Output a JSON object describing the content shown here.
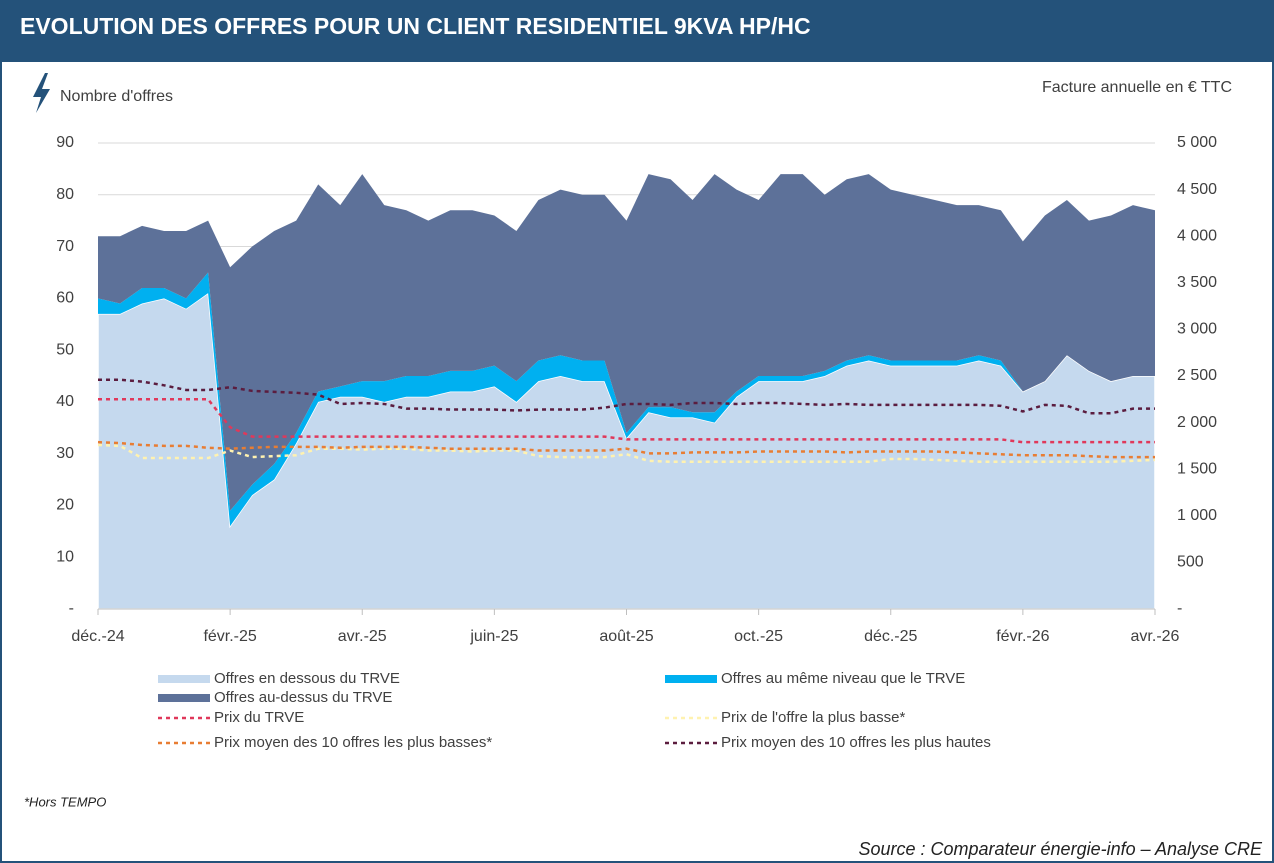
{
  "chart_data": {
    "type": "area",
    "stacked": true,
    "title": "EVOLUTION DES OFFRES POUR UN CLIENT RESIDENTIEL 9KVA HP/HC",
    "y_label": "Nombre d'offres",
    "y2_label": "Facture annuelle en € TTC",
    "footnote": "*Hors TEMPO",
    "source": "Source : Comparateur énergie-info – Analyse CRE",
    "categories": [
      "déc.-24",
      null,
      null,
      null,
      null,
      null,
      "févr.-25",
      null,
      null,
      null,
      null,
      null,
      "avr.-25",
      null,
      null,
      null,
      null,
      null,
      "juin-25",
      null,
      null,
      null,
      null,
      null,
      "août-25",
      null,
      null,
      null,
      null,
      null,
      "oct.-25",
      null,
      null,
      null,
      null,
      null,
      "déc.-25",
      null,
      null,
      null,
      null,
      null,
      "févr.-26",
      null,
      null,
      null,
      null,
      null,
      "avr.-26"
    ],
    "ylim": [
      0,
      90
    ],
    "yticks": [
      {
        "value": 0,
        "label": "-"
      },
      10,
      20,
      30,
      40,
      50,
      60,
      70,
      80,
      90
    ],
    "y2lim": [
      0,
      5000
    ],
    "y2ticks": [
      {
        "value": 0,
        "label": "-"
      },
      500,
      {
        "value": 1000,
        "label": "1 000"
      },
      {
        "value": 1500,
        "label": "1 500"
      },
      {
        "value": 2000,
        "label": "2 000"
      },
      {
        "value": 2500,
        "label": "2 500"
      },
      {
        "value": 3000,
        "label": "3 000"
      },
      {
        "value": 3500,
        "label": "3 500"
      },
      {
        "value": 4000,
        "label": "4 000"
      },
      {
        "value": 4500,
        "label": "4 500"
      },
      {
        "value": 5000,
        "label": "5 000"
      }
    ],
    "grid": true,
    "series": [
      {
        "name": "Offres en dessous du TRVE",
        "color": "#c5d9ee",
        "values": [
          57,
          57,
          59,
          60,
          58,
          61,
          16,
          22,
          25,
          32,
          40,
          41,
          41,
          40,
          41,
          41,
          42,
          42,
          43,
          40,
          44,
          45,
          44,
          44,
          33,
          38,
          37,
          37,
          36,
          41,
          44,
          44,
          44,
          45,
          47,
          48,
          47,
          47,
          47,
          47,
          48,
          47,
          42,
          44,
          49,
          46,
          44,
          45,
          45
        ]
      },
      {
        "name": "Offres au même niveau que le TRVE",
        "color": "#00b0f0",
        "values": [
          3,
          2,
          3,
          2,
          2,
          4,
          3,
          2,
          3,
          2,
          2,
          2,
          3,
          4,
          4,
          4,
          4,
          4,
          4,
          4,
          4,
          4,
          4,
          4,
          1,
          1,
          2,
          1,
          2,
          1,
          1,
          1,
          1,
          1,
          1,
          1,
          1,
          1,
          1,
          1,
          1,
          1,
          0,
          0,
          0,
          0,
          0,
          0,
          0
        ]
      },
      {
        "name": "Offres au-dessus du TRVE",
        "color": "#5d7199",
        "values": [
          12,
          13,
          12,
          11,
          13,
          10,
          47,
          46,
          45,
          41,
          40,
          35,
          40,
          34,
          32,
          30,
          31,
          31,
          29,
          29,
          31,
          32,
          32,
          32,
          41,
          45,
          44,
          41,
          46,
          39,
          34,
          39,
          39,
          34,
          35,
          35,
          33,
          32,
          31,
          30,
          29,
          29,
          29,
          32,
          30,
          29,
          32,
          33,
          32
        ]
      },
      {
        "name": "Prix du TRVE",
        "color": "#e0385a",
        "axis": "y2",
        "line_style": "dashed",
        "values": [
          2250,
          2250,
          2250,
          2250,
          2250,
          2250,
          1950,
          1850,
          1850,
          1850,
          1850,
          1850,
          1850,
          1850,
          1850,
          1850,
          1850,
          1850,
          1850,
          1850,
          1850,
          1850,
          1850,
          1850,
          1820,
          1820,
          1820,
          1820,
          1820,
          1820,
          1820,
          1820,
          1820,
          1820,
          1820,
          1820,
          1820,
          1820,
          1820,
          1820,
          1820,
          1820,
          1790,
          1790,
          1790,
          1790,
          1790,
          1790,
          1790
        ]
      },
      {
        "name": "Prix de l'offre la plus basse*",
        "color": "#fff2b0",
        "axis": "y2",
        "line_style": "dashed",
        "values": [
          1760,
          1750,
          1620,
          1620,
          1620,
          1620,
          1700,
          1630,
          1640,
          1650,
          1720,
          1720,
          1710,
          1720,
          1720,
          1700,
          1700,
          1690,
          1700,
          1700,
          1640,
          1630,
          1630,
          1630,
          1660,
          1590,
          1580,
          1580,
          1580,
          1580,
          1580,
          1580,
          1580,
          1580,
          1580,
          1580,
          1610,
          1610,
          1600,
          1590,
          1580,
          1580,
          1580,
          1580,
          1580,
          1580,
          1580,
          1590,
          1600
        ]
      },
      {
        "name": "Prix moyen des 10 offres les plus basses*",
        "color": "#e87d33",
        "axis": "y2",
        "line_style": "dashed",
        "values": [
          1790,
          1780,
          1760,
          1750,
          1750,
          1730,
          1720,
          1730,
          1740,
          1740,
          1740,
          1730,
          1740,
          1740,
          1740,
          1730,
          1720,
          1720,
          1720,
          1720,
          1700,
          1700,
          1700,
          1700,
          1720,
          1670,
          1670,
          1680,
          1680,
          1680,
          1690,
          1690,
          1690,
          1690,
          1680,
          1690,
          1690,
          1690,
          1690,
          1680,
          1670,
          1660,
          1650,
          1650,
          1650,
          1640,
          1630,
          1630,
          1630
        ]
      },
      {
        "name": "Prix moyen des 10 offres les plus hautes",
        "color": "#5b1d3f",
        "axis": "y2",
        "line_style": "dashed",
        "values": [
          2460,
          2460,
          2440,
          2400,
          2350,
          2350,
          2380,
          2340,
          2330,
          2320,
          2300,
          2200,
          2210,
          2200,
          2150,
          2150,
          2140,
          2140,
          2140,
          2130,
          2140,
          2140,
          2140,
          2160,
          2200,
          2200,
          2190,
          2210,
          2210,
          2200,
          2210,
          2210,
          2200,
          2190,
          2200,
          2190,
          2190,
          2190,
          2190,
          2190,
          2190,
          2180,
          2120,
          2190,
          2180,
          2100,
          2100,
          2150,
          2150
        ]
      }
    ]
  }
}
